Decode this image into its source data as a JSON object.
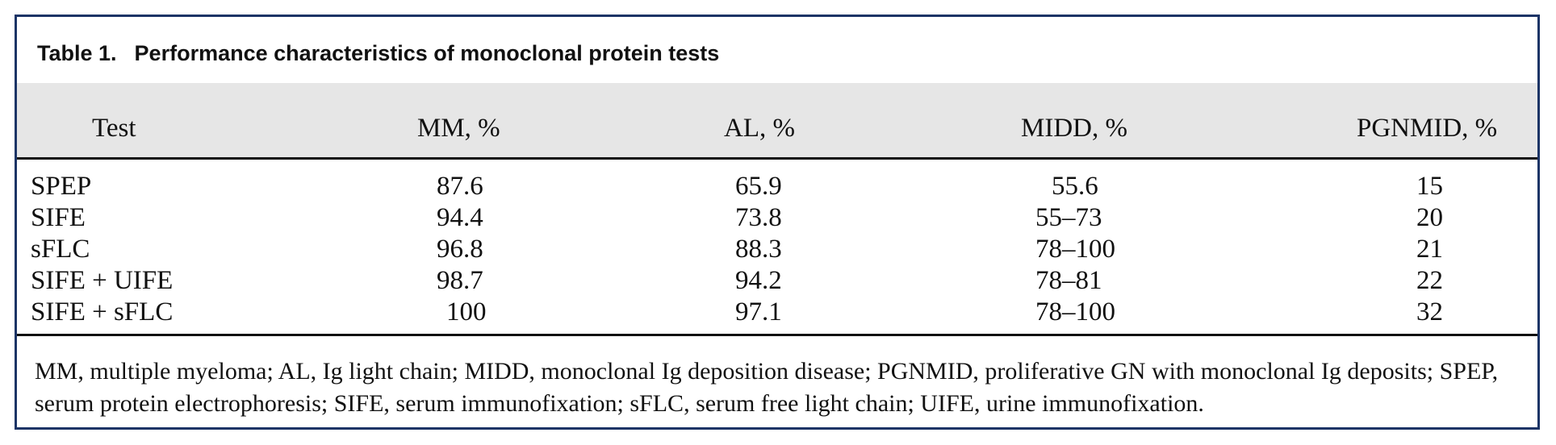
{
  "table": {
    "label": "Table 1.",
    "title": "Performance characteristics of monoclonal protein tests",
    "columns": [
      "Test",
      "MM, %",
      "AL, %",
      "MIDD, %",
      "PGNMID, %"
    ],
    "rows": [
      [
        "SPEP",
        "87.6",
        "65.9",
        "55.6",
        "15"
      ],
      [
        "SIFE",
        "94.4",
        "73.8",
        "55–73",
        "20"
      ],
      [
        "sFLC",
        "96.8",
        "88.3",
        "78–100",
        "21"
      ],
      [
        "SIFE + UIFE",
        "98.7",
        "94.2",
        "78–81",
        "22"
      ],
      [
        "SIFE + sFLC",
        "100",
        "97.1",
        "78–100",
        "32"
      ]
    ],
    "footnote": "MM, multiple myeloma; AL, Ig light chain; MIDD, monoclonal Ig deposition disease; PGNMID, proliferative GN with monoclonal Ig deposits; SPEP, serum protein electrophoresis; SIFE, serum immunofixation; sFLC, serum free light chain; UIFE, urine immunofixation."
  },
  "colors": {
    "frame_border": "#1c3466",
    "header_background": "#e6e6e6",
    "text": "#111111"
  }
}
